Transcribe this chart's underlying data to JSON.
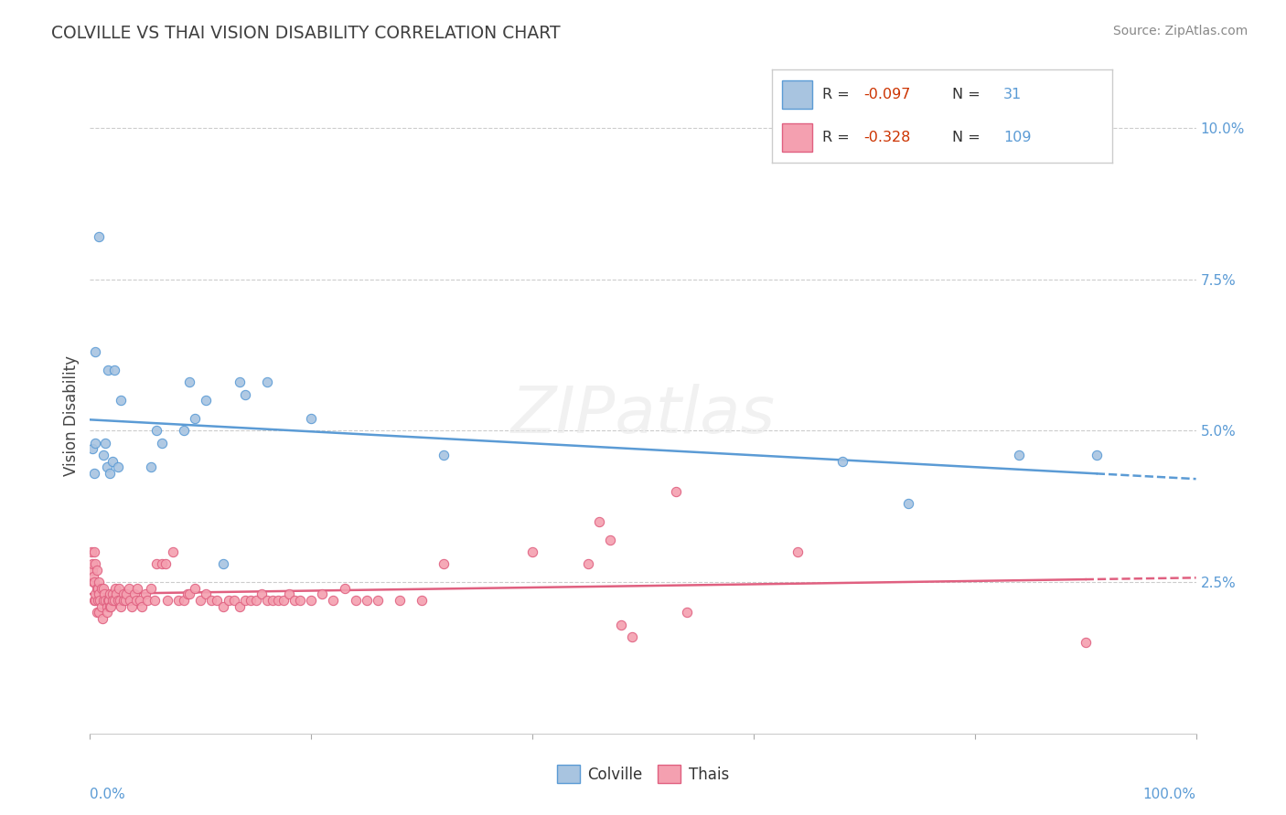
{
  "title": "COLVILLE VS THAI VISION DISABILITY CORRELATION CHART",
  "source": "Source: ZipAtlas.com",
  "ylabel": "Vision Disability",
  "colville_R": -0.097,
  "colville_N": 31,
  "thai_R": -0.328,
  "thai_N": 109,
  "colville_color": "#a8c4e0",
  "thai_color": "#f4a0b0",
  "colville_line_color": "#5b9bd5",
  "thai_line_color": "#e06080",
  "r_value_color": "#cc3300",
  "watermark_color": "#e8e8e8",
  "xlim": [
    0.0,
    1.0
  ],
  "ylim": [
    0.0,
    0.105
  ],
  "ytick_vals": [
    0.025,
    0.05,
    0.075,
    0.1
  ],
  "ytick_labels": [
    "2.5%",
    "5.0%",
    "7.5%",
    "10.0%"
  ],
  "background_color": "#ffffff",
  "colville_points": [
    [
      0.002,
      0.047
    ],
    [
      0.004,
      0.043
    ],
    [
      0.005,
      0.063
    ],
    [
      0.005,
      0.048
    ],
    [
      0.008,
      0.082
    ],
    [
      0.012,
      0.046
    ],
    [
      0.014,
      0.048
    ],
    [
      0.015,
      0.044
    ],
    [
      0.016,
      0.06
    ],
    [
      0.018,
      0.043
    ],
    [
      0.02,
      0.045
    ],
    [
      0.022,
      0.06
    ],
    [
      0.025,
      0.044
    ],
    [
      0.028,
      0.055
    ],
    [
      0.055,
      0.044
    ],
    [
      0.06,
      0.05
    ],
    [
      0.065,
      0.048
    ],
    [
      0.085,
      0.05
    ],
    [
      0.09,
      0.058
    ],
    [
      0.095,
      0.052
    ],
    [
      0.105,
      0.055
    ],
    [
      0.12,
      0.028
    ],
    [
      0.135,
      0.058
    ],
    [
      0.14,
      0.056
    ],
    [
      0.16,
      0.058
    ],
    [
      0.2,
      0.052
    ],
    [
      0.32,
      0.046
    ],
    [
      0.68,
      0.045
    ],
    [
      0.74,
      0.038
    ],
    [
      0.84,
      0.046
    ],
    [
      0.91,
      0.046
    ]
  ],
  "thai_points": [
    [
      0.001,
      0.03
    ],
    [
      0.002,
      0.027
    ],
    [
      0.002,
      0.028
    ],
    [
      0.003,
      0.025
    ],
    [
      0.003,
      0.026
    ],
    [
      0.004,
      0.03
    ],
    [
      0.004,
      0.022
    ],
    [
      0.004,
      0.025
    ],
    [
      0.005,
      0.022
    ],
    [
      0.005,
      0.023
    ],
    [
      0.005,
      0.028
    ],
    [
      0.006,
      0.024
    ],
    [
      0.006,
      0.02
    ],
    [
      0.006,
      0.027
    ],
    [
      0.007,
      0.022
    ],
    [
      0.007,
      0.024
    ],
    [
      0.008,
      0.023
    ],
    [
      0.008,
      0.025
    ],
    [
      0.008,
      0.02
    ],
    [
      0.009,
      0.022
    ],
    [
      0.01,
      0.024
    ],
    [
      0.01,
      0.021
    ],
    [
      0.011,
      0.019
    ],
    [
      0.012,
      0.024
    ],
    [
      0.012,
      0.022
    ],
    [
      0.013,
      0.023
    ],
    [
      0.014,
      0.022
    ],
    [
      0.015,
      0.021
    ],
    [
      0.015,
      0.02
    ],
    [
      0.016,
      0.022
    ],
    [
      0.017,
      0.022
    ],
    [
      0.018,
      0.021
    ],
    [
      0.018,
      0.023
    ],
    [
      0.019,
      0.021
    ],
    [
      0.02,
      0.023
    ],
    [
      0.02,
      0.022
    ],
    [
      0.022,
      0.022
    ],
    [
      0.023,
      0.024
    ],
    [
      0.024,
      0.023
    ],
    [
      0.025,
      0.022
    ],
    [
      0.026,
      0.024
    ],
    [
      0.027,
      0.022
    ],
    [
      0.028,
      0.021
    ],
    [
      0.03,
      0.023
    ],
    [
      0.03,
      0.022
    ],
    [
      0.032,
      0.022
    ],
    [
      0.033,
      0.023
    ],
    [
      0.035,
      0.024
    ],
    [
      0.036,
      0.022
    ],
    [
      0.038,
      0.021
    ],
    [
      0.04,
      0.023
    ],
    [
      0.042,
      0.022
    ],
    [
      0.043,
      0.024
    ],
    [
      0.045,
      0.022
    ],
    [
      0.047,
      0.021
    ],
    [
      0.05,
      0.023
    ],
    [
      0.052,
      0.022
    ],
    [
      0.055,
      0.024
    ],
    [
      0.058,
      0.022
    ],
    [
      0.06,
      0.028
    ],
    [
      0.065,
      0.028
    ],
    [
      0.068,
      0.028
    ],
    [
      0.07,
      0.022
    ],
    [
      0.075,
      0.03
    ],
    [
      0.08,
      0.022
    ],
    [
      0.085,
      0.022
    ],
    [
      0.088,
      0.023
    ],
    [
      0.09,
      0.023
    ],
    [
      0.095,
      0.024
    ],
    [
      0.1,
      0.022
    ],
    [
      0.105,
      0.023
    ],
    [
      0.11,
      0.022
    ],
    [
      0.115,
      0.022
    ],
    [
      0.12,
      0.021
    ],
    [
      0.125,
      0.022
    ],
    [
      0.13,
      0.022
    ],
    [
      0.135,
      0.021
    ],
    [
      0.14,
      0.022
    ],
    [
      0.145,
      0.022
    ],
    [
      0.15,
      0.022
    ],
    [
      0.155,
      0.023
    ],
    [
      0.16,
      0.022
    ],
    [
      0.165,
      0.022
    ],
    [
      0.17,
      0.022
    ],
    [
      0.175,
      0.022
    ],
    [
      0.18,
      0.023
    ],
    [
      0.185,
      0.022
    ],
    [
      0.19,
      0.022
    ],
    [
      0.2,
      0.022
    ],
    [
      0.21,
      0.023
    ],
    [
      0.22,
      0.022
    ],
    [
      0.23,
      0.024
    ],
    [
      0.24,
      0.022
    ],
    [
      0.25,
      0.022
    ],
    [
      0.26,
      0.022
    ],
    [
      0.28,
      0.022
    ],
    [
      0.3,
      0.022
    ],
    [
      0.32,
      0.028
    ],
    [
      0.4,
      0.03
    ],
    [
      0.45,
      0.028
    ],
    [
      0.46,
      0.035
    ],
    [
      0.47,
      0.032
    ],
    [
      0.48,
      0.018
    ],
    [
      0.49,
      0.016
    ],
    [
      0.53,
      0.04
    ],
    [
      0.54,
      0.02
    ],
    [
      0.64,
      0.03
    ],
    [
      0.9,
      0.015
    ]
  ]
}
